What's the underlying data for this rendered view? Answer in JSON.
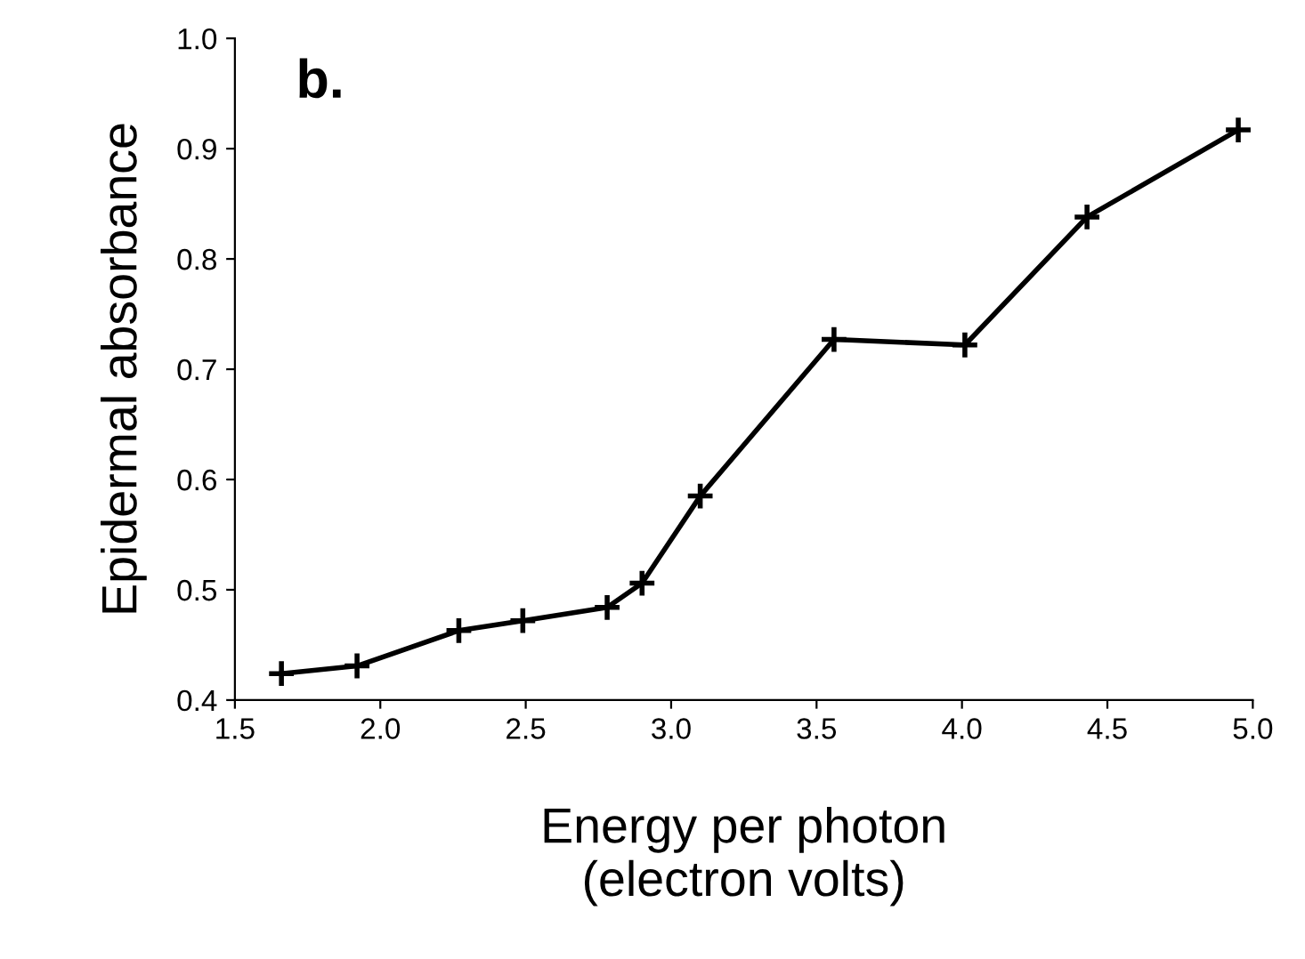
{
  "chart_data": {
    "type": "line",
    "title": "b.",
    "xlabel": "Energy per photon\n(electron volts)",
    "ylabel": "Epidermal absorbance",
    "x": [
      1.66,
      1.92,
      2.27,
      2.49,
      2.78,
      2.9,
      3.1,
      3.56,
      4.01,
      4.43,
      4.95
    ],
    "series": [
      {
        "color": "#000000",
        "values": [
          0.424,
          0.431,
          0.463,
          0.472,
          0.484,
          0.506,
          0.585,
          0.727,
          0.722,
          0.838,
          0.917
        ]
      }
    ],
    "xlim": [
      1.5,
      5
    ],
    "xticks": [
      1.5,
      {
        "value": 2,
        "label": "2.0"
      },
      2.5,
      {
        "value": 3,
        "label": "3.0"
      },
      3.5,
      {
        "value": 4,
        "label": "4.0"
      },
      4.5,
      {
        "value": 5,
        "label": "5.0"
      }
    ],
    "ylim": [
      0.4,
      1
    ],
    "yticks": [
      0.4,
      0.5,
      0.6,
      0.7,
      0.8,
      0.9,
      {
        "value": 1,
        "label": "1.0"
      }
    ],
    "marker": "cross",
    "line_style": "solid",
    "grid": false,
    "legend": false
  }
}
